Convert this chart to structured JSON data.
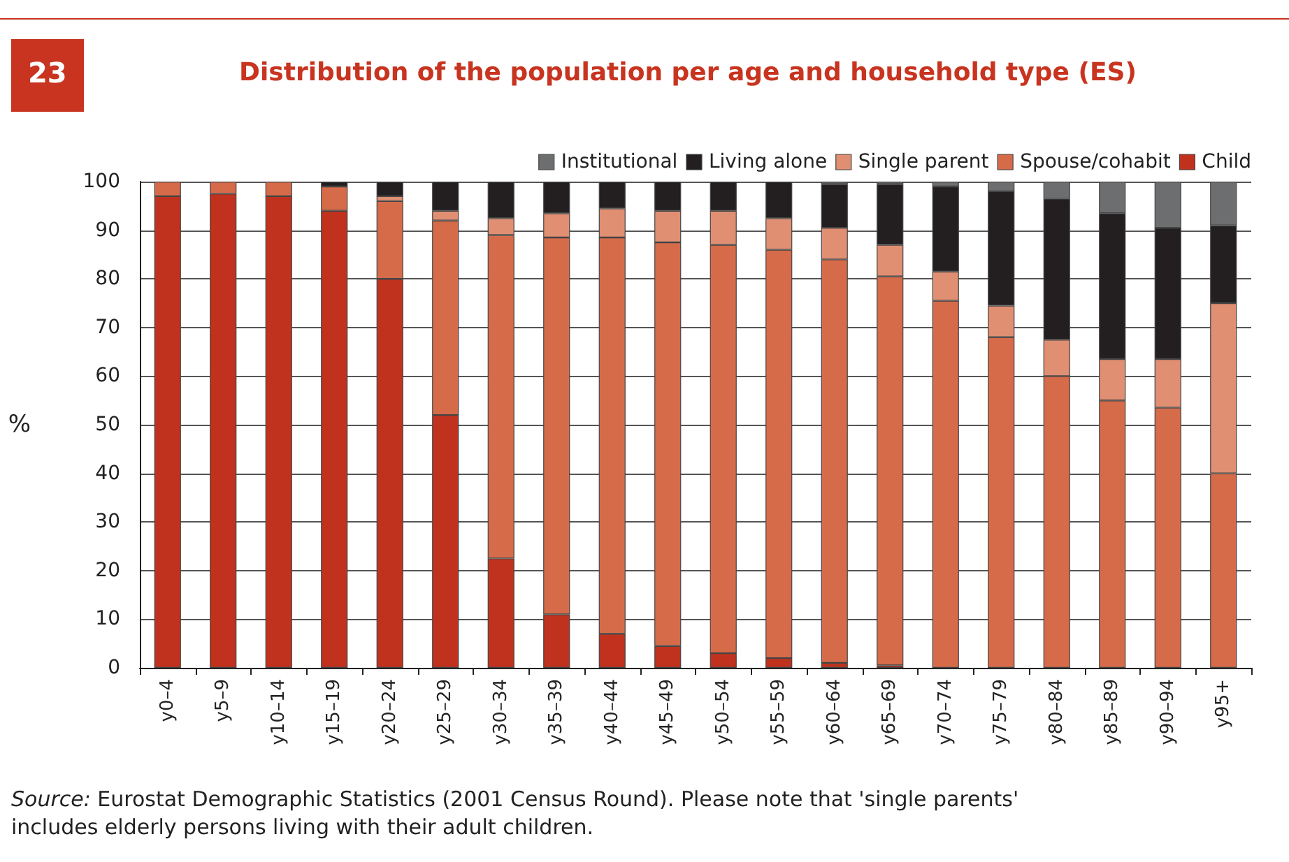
{
  "chart_data": {
    "type": "bar",
    "stacked": true,
    "title": "Distribution of the population per age and household type (ES)",
    "ylabel": "%",
    "annotations": [
      "23",
      "Source: Eurostat Demographic Statistics (2001 Census Round). Please note that 'single parents' includes elderly persons living with their adult children."
    ],
    "categories": [
      "y0–4",
      "y5–9",
      "y10–14",
      "y15–19",
      "y20–24",
      "y25–29",
      "y30–34",
      "y35–39",
      "y40–44",
      "y45–49",
      "y50–54",
      "y55–59",
      "y60–64",
      "y65–69",
      "y70–74",
      "y75–79",
      "y80–84",
      "y85–89",
      "y90–94",
      "y95+"
    ],
    "series": [
      {
        "name": "Child",
        "color": "#c0321e",
        "values": [
          97,
          97.5,
          97,
          94,
          80,
          52,
          22.5,
          11,
          7,
          4.5,
          3,
          2,
          1,
          0.5,
          0,
          0,
          0,
          0,
          0,
          0
        ]
      },
      {
        "name": "Spouse/cohabit",
        "color": "#d66b4a",
        "values": [
          3,
          2.5,
          3,
          5,
          16,
          40,
          66.5,
          77.5,
          81.5,
          83,
          84,
          84,
          83,
          80,
          75.5,
          68,
          60,
          55,
          53.5,
          40
        ]
      },
      {
        "name": "Single parent",
        "color": "#e08f72",
        "values": [
          0,
          0,
          0,
          0,
          1,
          2,
          3.5,
          5,
          6,
          6.5,
          7,
          6.5,
          6.5,
          6.5,
          6,
          6.5,
          7.5,
          8.5,
          10,
          35
        ]
      },
      {
        "name": "Living alone",
        "color": "#231f20",
        "values": [
          0,
          0,
          0,
          1,
          3,
          6,
          7.5,
          6.5,
          5.5,
          6,
          6,
          7.5,
          9,
          12.5,
          17.5,
          23.5,
          29,
          30,
          27,
          16
        ]
      },
      {
        "name": "Institutional",
        "color": "#6d6e70",
        "values": [
          0,
          0,
          0,
          0,
          0,
          0,
          0,
          0,
          0,
          0,
          0,
          0,
          0.5,
          0.5,
          1,
          2,
          3.5,
          6.5,
          9.5,
          9
        ]
      }
    ],
    "ylim": [
      0,
      100
    ],
    "yticks": [
      0,
      10,
      20,
      30,
      40,
      50,
      60,
      70,
      80,
      90,
      100
    ],
    "grid": "y",
    "legend": "top right"
  }
}
